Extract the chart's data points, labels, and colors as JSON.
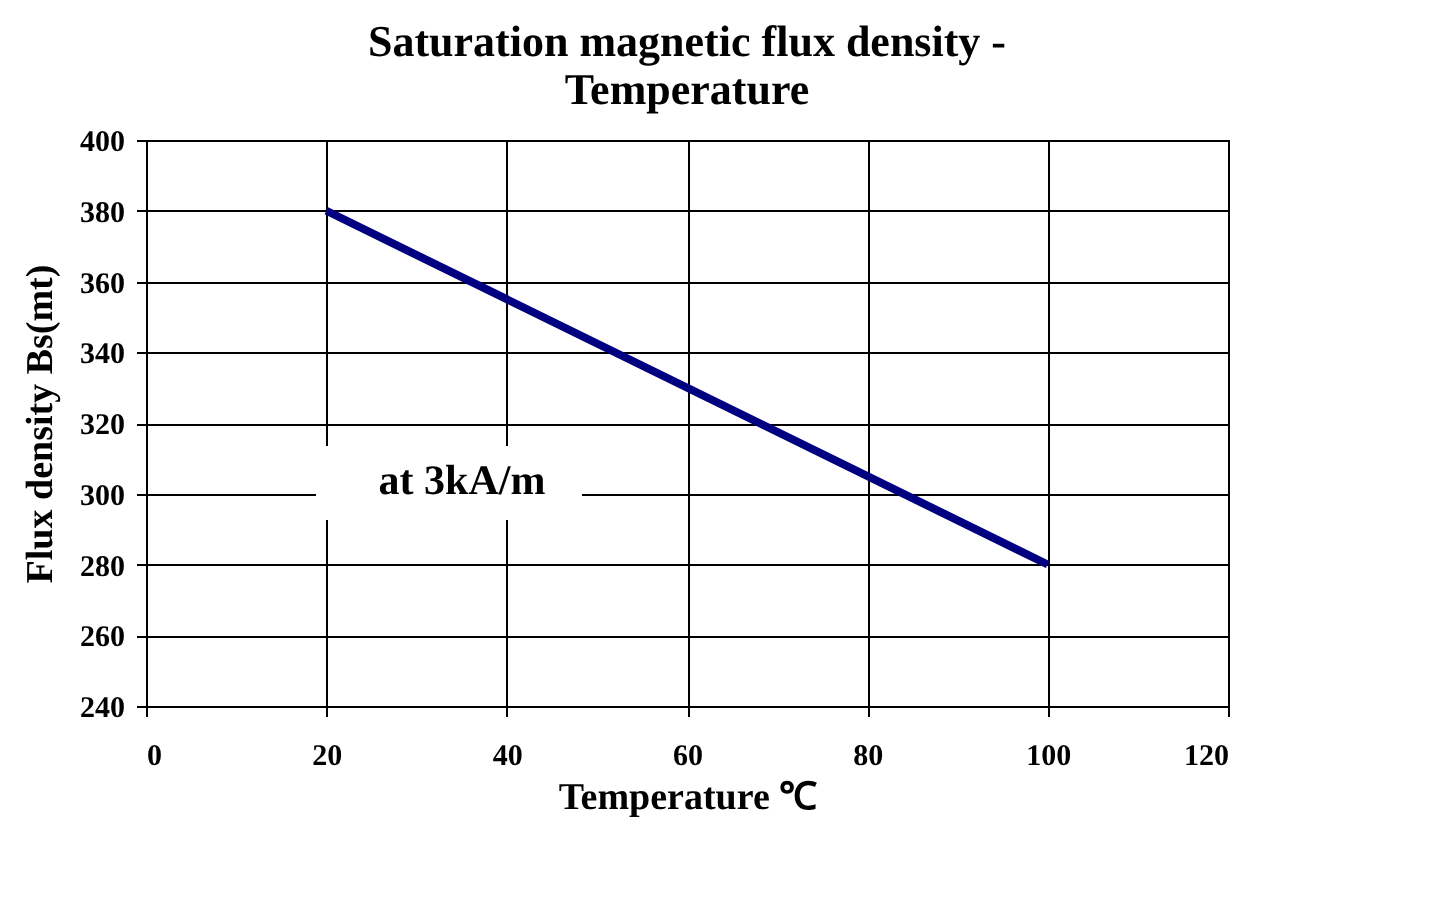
{
  "chart_data": {
    "type": "line",
    "title": [
      "Saturation magnetic flux density -",
      "Temperature"
    ],
    "xlabel": "Temperature ℃",
    "ylabel": "Flux density Bs(mt)",
    "x": [
      20,
      100
    ],
    "series": [
      {
        "color": "#000080",
        "values": [
          380,
          280
        ]
      }
    ],
    "xlim": [
      0,
      120
    ],
    "xticks": [
      0,
      20,
      40,
      60,
      80,
      100,
      120
    ],
    "ylim": [
      240,
      400
    ],
    "yticks": [
      240,
      260,
      280,
      300,
      320,
      340,
      360,
      380,
      400
    ],
    "grid": true,
    "legend": false,
    "marker": "none",
    "line_style": "solid",
    "annotations": [
      "at 3kA/m"
    ]
  }
}
